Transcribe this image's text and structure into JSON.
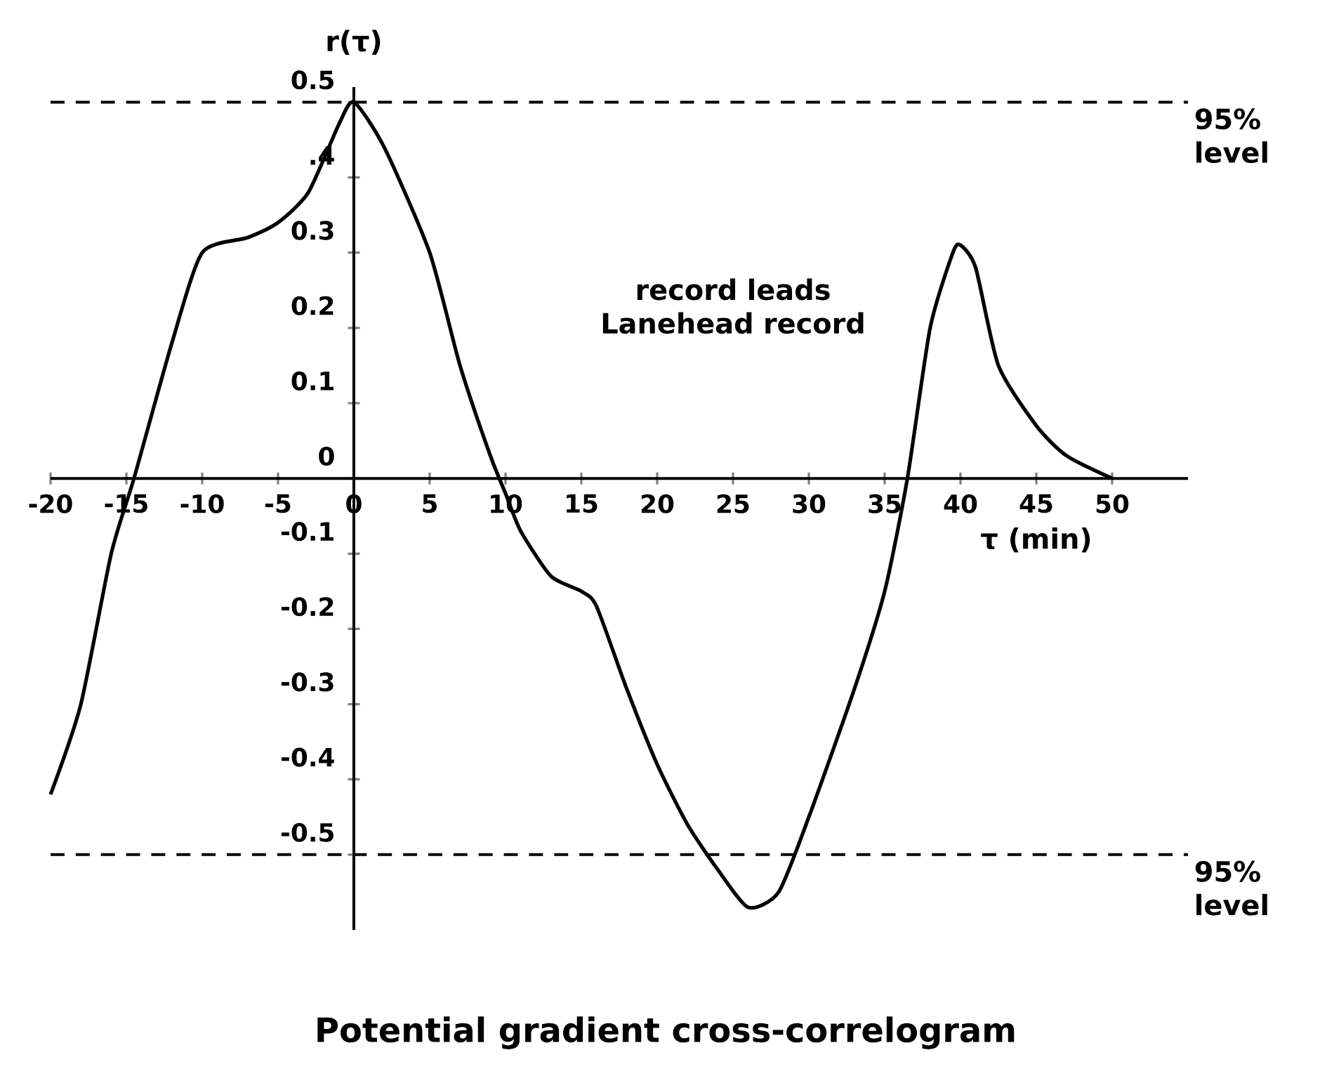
{
  "chart_data": {
    "type": "line",
    "title": "Potential gradient cross-correlogram",
    "xlabel": "τ (min)",
    "ylabel": "r(τ)",
    "x": [
      -20,
      -18,
      -16,
      -14.5,
      -12,
      -10,
      -7,
      -5,
      -3,
      -1,
      0,
      2,
      5,
      7,
      9,
      10,
      11,
      13,
      15,
      16,
      18,
      20,
      22,
      24,
      26,
      28,
      30,
      33,
      35,
      36.5,
      38,
      39.5,
      40,
      41,
      42.5,
      45,
      47,
      50
    ],
    "series": [
      {
        "color": "#000000",
        "values": [
          -0.42,
          -0.3,
          -0.1,
          0,
          0.18,
          0.3,
          0.32,
          0.34,
          0.38,
          0.47,
          0.5,
          0.44,
          0.3,
          0.15,
          0.03,
          -0.02,
          -0.07,
          -0.13,
          -0.15,
          -0.17,
          -0.28,
          -0.38,
          -0.46,
          -0.52,
          -0.57,
          -0.55,
          -0.45,
          -0.28,
          -0.15,
          0,
          0.2,
          0.3,
          0.31,
          0.28,
          0.15,
          0.07,
          0.03,
          0
        ]
      }
    ],
    "xlim": [
      -20,
      55
    ],
    "ylim": [
      -0.6,
      0.52
    ],
    "xticks": [
      -20,
      -15,
      -10,
      -5,
      0,
      5,
      10,
      15,
      20,
      25,
      30,
      35,
      40,
      45,
      50
    ],
    "yticks": [
      {
        "value": 0.5,
        "label": "0.5"
      },
      {
        "value": 0.4,
        "label": ".4"
      },
      {
        "value": 0.3,
        "label": "0.3"
      },
      {
        "value": 0.2,
        "label": "0.2"
      },
      {
        "value": 0.1,
        "label": "0.1"
      },
      {
        "value": 0,
        "label": "0"
      },
      {
        "value": -0.1,
        "label": "-0.1"
      },
      {
        "value": -0.2,
        "label": "-0.2"
      },
      {
        "value": -0.3,
        "label": "-0.3"
      },
      {
        "value": -0.4,
        "label": "-0.4"
      },
      {
        "value": -0.5,
        "label": "-0.5"
      }
    ],
    "ref_lines": [
      {
        "axis": "y",
        "value": 0.5,
        "label": "95% level",
        "line_style": "dashed"
      },
      {
        "axis": "y",
        "value": -0.5,
        "label": "95% level",
        "line_style": "dashed"
      }
    ],
    "annotations": [
      "record leads Lanehead record"
    ],
    "grid": false,
    "line_style": "solid"
  }
}
